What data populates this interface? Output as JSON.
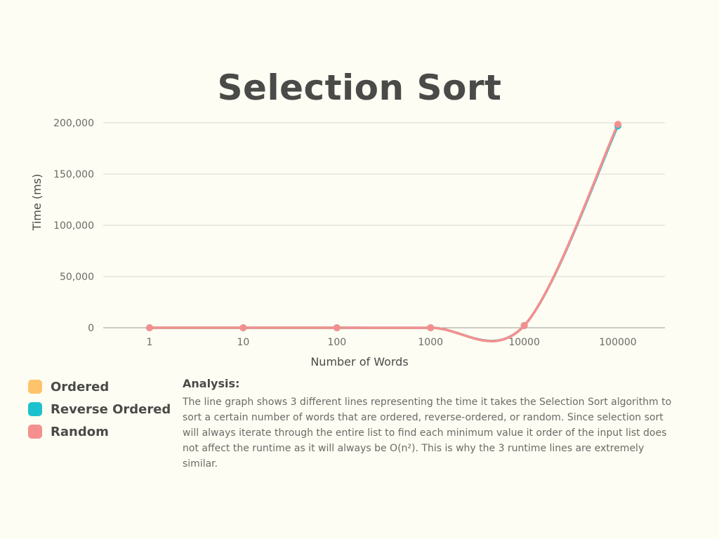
{
  "chart_data": {
    "type": "line",
    "title": "Selection Sort",
    "xlabel": "Number of Words",
    "ylabel": "Time (ms)",
    "categories": [
      "1",
      "10",
      "100",
      "1000",
      "10000",
      "100000"
    ],
    "ylim": [
      0,
      200000
    ],
    "yticks": [
      0,
      50000,
      100000,
      150000,
      200000
    ],
    "ytick_labels": [
      "0",
      "50,000",
      "100,000",
      "150,000",
      "200,000"
    ],
    "grid": true,
    "legend": "bottom-left",
    "series": [
      {
        "name": "Ordered",
        "color": "#ffc46b",
        "values": [
          0,
          0,
          3,
          40,
          2100,
          198000
        ]
      },
      {
        "name": "Reverse Ordered",
        "color": "#1cc1ce",
        "values": [
          0,
          0,
          3,
          40,
          2100,
          197000
        ]
      },
      {
        "name": "Random",
        "color": "#f58f8f",
        "values": [
          0,
          0,
          3,
          40,
          2100,
          198500
        ]
      }
    ]
  },
  "analysis": {
    "heading": "Analysis:",
    "text": "The line graph shows 3 different lines representing the time it takes the Selection Sort algorithm to sort a certain number of words that are ordered, reverse-ordered, or random. Since selection sort will always iterate through the entire list to find each minimum value it order of the input list does not affect the runtime as it will always be O(n²). This is why the 3 runtime lines are extremely similar."
  }
}
